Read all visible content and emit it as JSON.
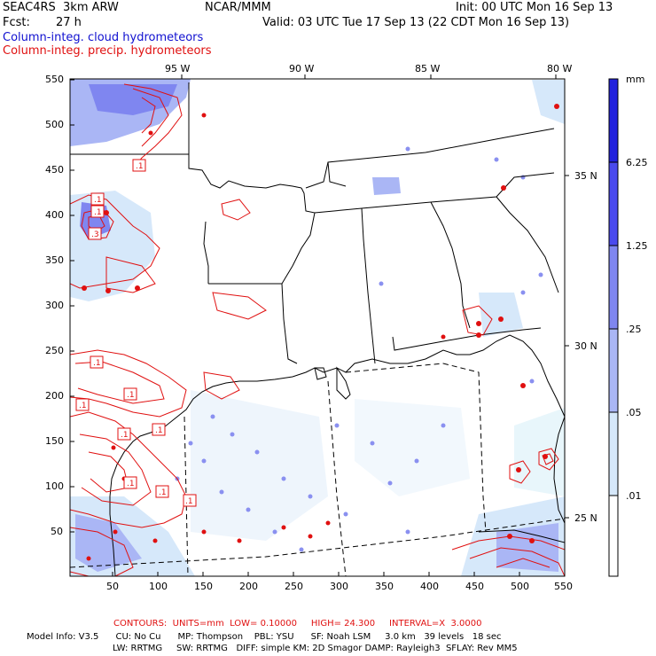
{
  "header": {
    "model": "SEAC4RS  3km ARW",
    "org": "NCAR/MMM",
    "init": "Init: 00 UTC Mon 16 Sep 13",
    "fcst_label": "Fcst:",
    "fcst_value": "27 h",
    "valid": "Valid: 03 UTC Tue 17 Sep 13 (22 CDT Mon 16 Sep 13)",
    "line_cloud": "Column-integ. cloud hydrometeors",
    "line_precip": "Column-integ. precip. hydrometeors"
  },
  "top_lon_labels": [
    "95 W",
    "90 W",
    "85 W",
    "80 W"
  ],
  "right_lat_labels": [
    "35 N",
    "30 N",
    "25 N"
  ],
  "x_ticks": [
    "50",
    "100",
    "150",
    "200",
    "250",
    "300",
    "350",
    "400",
    "450",
    "500",
    "550"
  ],
  "y_ticks": [
    "550",
    "500",
    "450",
    "400",
    "350",
    "300",
    "250",
    "200",
    "150",
    "100",
    "50"
  ],
  "colorbar": {
    "unit": "mm",
    "labels": [
      "6.25",
      "1.25",
      ".25",
      ".05",
      ".01"
    ],
    "colors": [
      "#2222dd",
      "#4a4aee",
      "#7f86f0",
      "#aab6f5",
      "#d6e8fa",
      "#e8f6fb",
      "#ffffff"
    ]
  },
  "contour_labels": [
    ".1",
    ".1",
    ".1",
    ".1",
    ".1",
    ".1",
    ".1",
    ".1",
    ".1",
    ".1",
    ".3",
    ".1"
  ],
  "footer": {
    "contours": "CONTOURS:  UNITS=mm  LOW= 0.10000     HIGH= 24.300     INTERVAL=X  3.0000",
    "model_info_1": "Model Info: V3.5      CU: No Cu      MP: Thompson    PBL: YSU      SF: Noah LSM     3.0 km   39 levels   18 sec",
    "model_info_2": "LW: RRTMG     SW: RRTMG   DIFF: simple KM: 2D Smagor DAMP: Rayleigh3  SFLAY: Rev MM5"
  }
}
